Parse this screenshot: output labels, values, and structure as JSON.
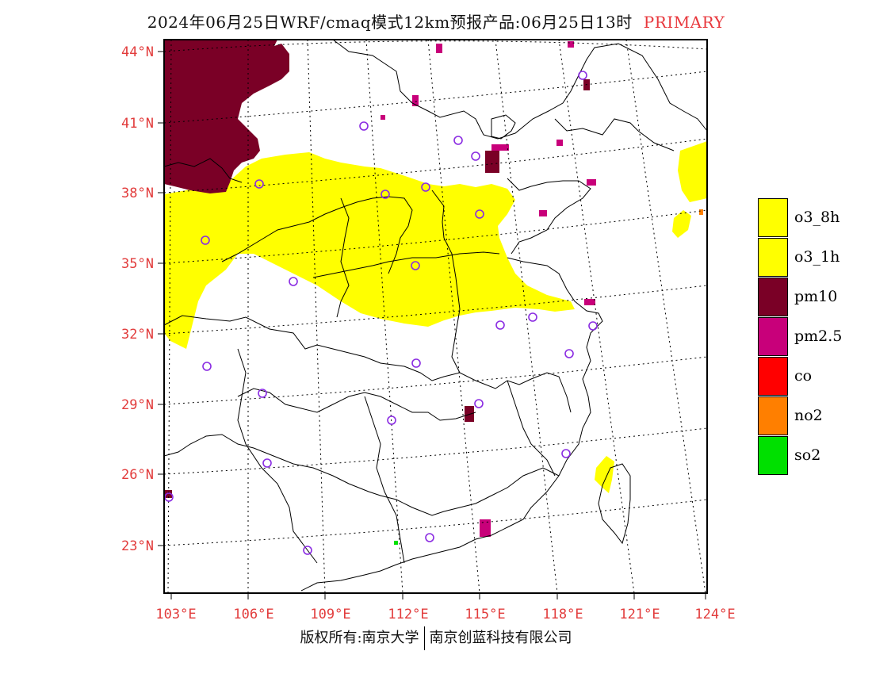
{
  "title": {
    "main": "2024年06月25日WRF/cmaq模式12km预报产品:06月25日13时",
    "tag": "PRIMARY"
  },
  "colors": {
    "o3_8h": "#ffff00",
    "o3_1h": "#ffff00",
    "pm10": "#7a0026",
    "pm2_5": "#c8007a",
    "co": "#ff0000",
    "no2": "#ff7f00",
    "so2": "#00e000",
    "axis_label": "#e23c3c",
    "station_marker": "#8a2be2"
  },
  "latitude_labels": [
    "44°N",
    "41°N",
    "38°N",
    "35°N",
    "32°N",
    "29°N",
    "26°N",
    "23°N"
  ],
  "longitude_labels": [
    "103°E",
    "106°E",
    "109°E",
    "112°E",
    "115°E",
    "118°E",
    "121°E",
    "124°E"
  ],
  "legend": [
    {
      "key": "o3_8h",
      "label": "o3_8h"
    },
    {
      "key": "o3_1h",
      "label": "o3_1h"
    },
    {
      "key": "pm10",
      "label": "pm10"
    },
    {
      "key": "pm2_5",
      "label": "pm2.5"
    },
    {
      "key": "co",
      "label": "co"
    },
    {
      "key": "no2",
      "label": "no2"
    },
    {
      "key": "so2",
      "label": "so2"
    }
  ],
  "credit": {
    "left": "版权所有:南京大学",
    "right": "南京创蓝科技有限公司"
  }
}
